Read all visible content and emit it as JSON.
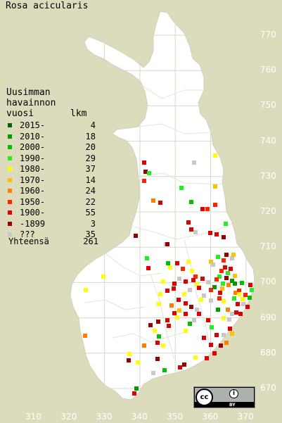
{
  "title": "Rosa acicularis",
  "legend": {
    "heading": [
      "Uusimman",
      "havainnon",
      "vuosi"
    ],
    "count_header": "lkm",
    "rows": [
      {
        "label": "2015-",
        "count": "4",
        "color": "#006400"
      },
      {
        "label": "2010-",
        "count": "18",
        "color": "#009a00"
      },
      {
        "label": "2000-",
        "count": "20",
        "color": "#00c000"
      },
      {
        "label": "1990-",
        "count": "29",
        "color": "#22ee22"
      },
      {
        "label": "1980-",
        "count": "37",
        "color": "#ffff00"
      },
      {
        "label": "1970-",
        "count": "14",
        "color": "#ffc000"
      },
      {
        "label": "1960-",
        "count": "24",
        "color": "#ff8000"
      },
      {
        "label": "1950-",
        "count": "22",
        "color": "#ff2200"
      },
      {
        "label": "1900-",
        "count": "55",
        "color": "#e00000"
      },
      {
        "label": "-1899",
        "count": "3",
        "color": "#990000"
      },
      {
        "label": "???",
        "count": "35",
        "color": "#c8c8c8"
      }
    ],
    "total_label": "Yhteensä",
    "total_count": "261"
  },
  "y_ticks": [
    "770",
    "760",
    "750",
    "740",
    "730",
    "720",
    "710",
    "700",
    "690",
    "680",
    "670"
  ],
  "x_ticks": [
    "310",
    "320",
    "330",
    "340",
    "350",
    "360",
    "370"
  ],
  "license": {
    "cc": "cc",
    "by": "BY"
  },
  "colors": {
    "background": "#dcdcbc",
    "land": "#ffffff",
    "grid": "#d8d8c8",
    "border": "#cfcfb8"
  }
}
